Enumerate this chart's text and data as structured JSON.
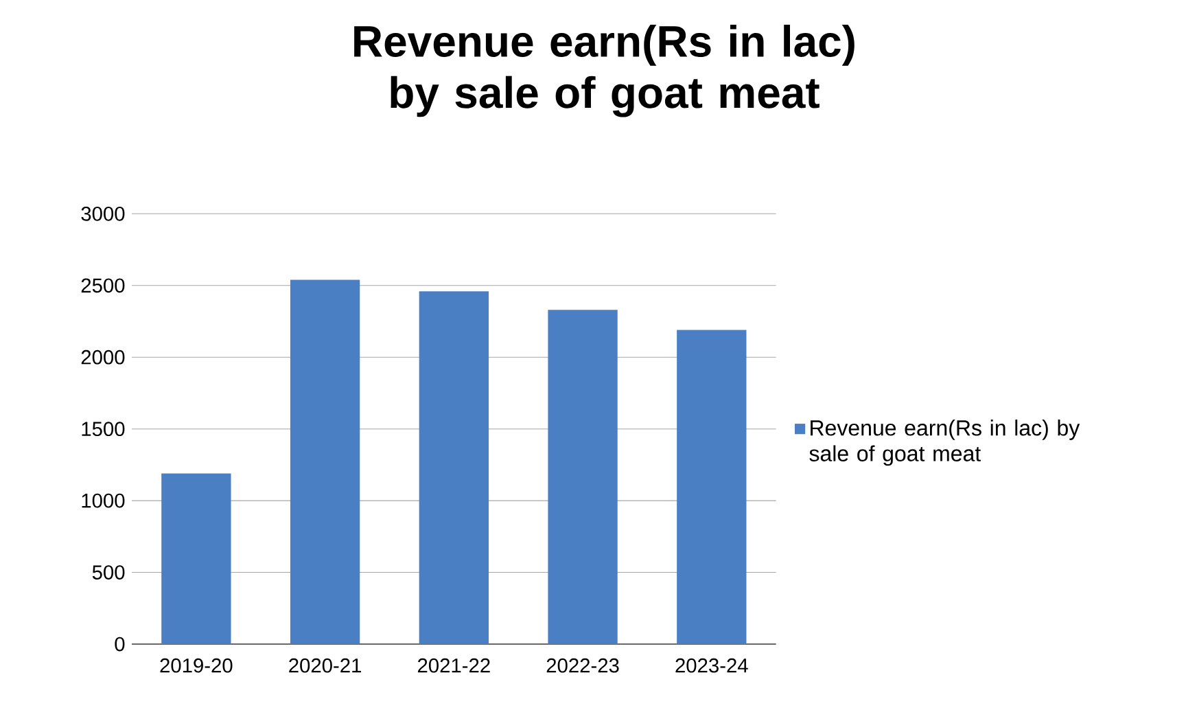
{
  "chart_data": {
    "type": "bar",
    "title": "Revenue earn(Rs in lac) by sale of goat meat",
    "categories": [
      "2019-20",
      "2020-21",
      "2021-22",
      "2022-23",
      "2023-24"
    ],
    "series": [
      {
        "name": "Revenue earn(Rs in lac) by sale of goat meat",
        "color": "#4a7fc4",
        "values": [
          1190,
          2540,
          2460,
          2330,
          2190
        ]
      }
    ],
    "ylim": [
      0,
      3000
    ],
    "yticks": [
      0,
      500,
      1000,
      1500,
      2000,
      2500,
      3000
    ],
    "grid": "y",
    "legend": "right"
  }
}
